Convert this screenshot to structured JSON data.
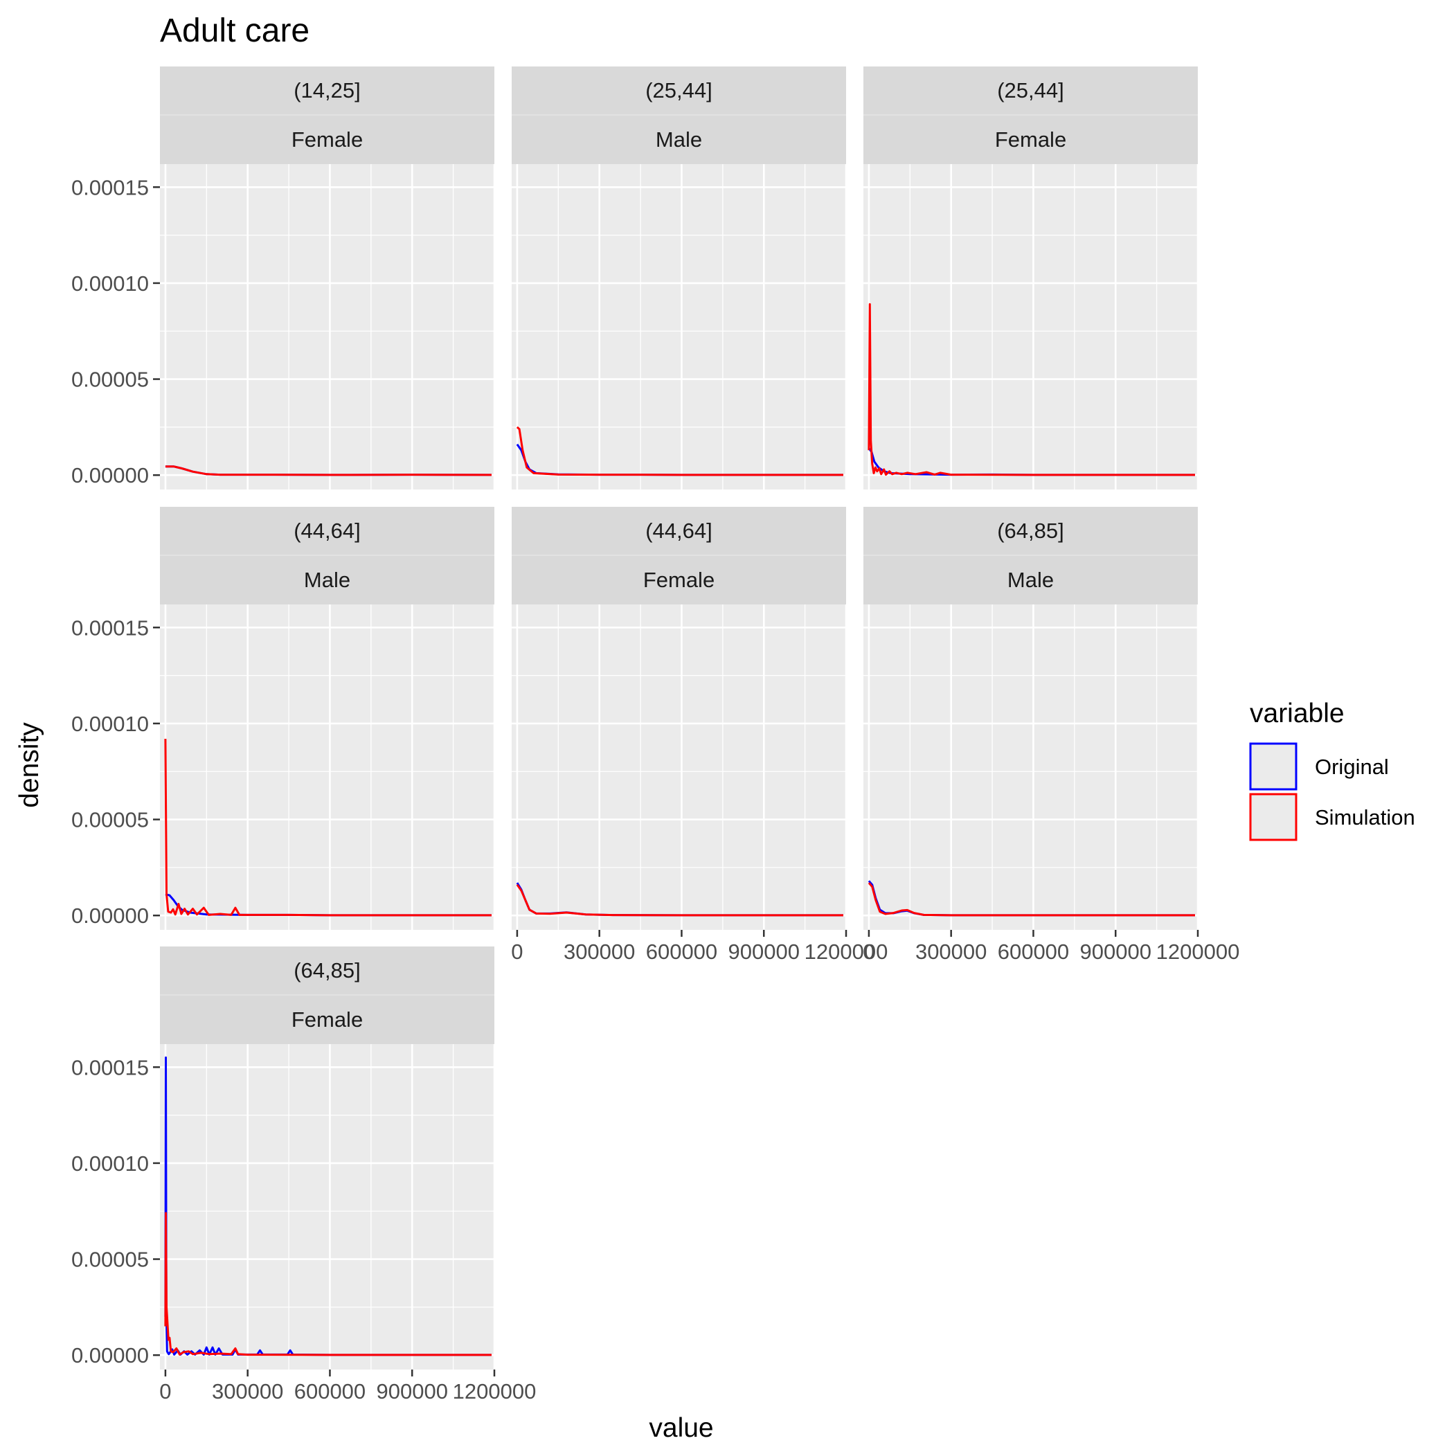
{
  "chart_data": {
    "type": "line",
    "title": "Adult care",
    "xlabel": "value",
    "ylabel": "density",
    "xlim": [
      -20000,
      1200000
    ],
    "ylim": [
      -7.5e-06,
      0.000162
    ],
    "x_ticks": [
      0,
      300000,
      600000,
      900000,
      1200000
    ],
    "x_tick_labels": [
      "0",
      "300000",
      "600000",
      "900000",
      "1200000"
    ],
    "y_ticks": [
      0,
      5e-05,
      0.0001,
      0.00015
    ],
    "y_tick_labels": [
      "0.00000",
      "0.00005",
      "0.00010",
      "0.00015"
    ],
    "grid": true,
    "legend": {
      "title": "variable",
      "position": "right",
      "entries": [
        {
          "label": "Original",
          "color": "#0000FF"
        },
        {
          "label": "Simulation",
          "color": "#FF0000"
        }
      ]
    },
    "panels": [
      {
        "age": "(14,25]",
        "sex": "Female",
        "series": [
          {
            "name": "Original",
            "color": "#0000FF",
            "points": [
              [
                0,
                4.5e-06
              ],
              [
                30000,
                4.5e-06
              ],
              [
                60000,
                3.5e-06
              ],
              [
                100000,
                1.8e-06
              ],
              [
                150000,
                5e-07
              ],
              [
                200000,
                2e-07
              ],
              [
                400000,
                2e-07
              ],
              [
                600000,
                1e-07
              ],
              [
                900000,
                2e-07
              ],
              [
                1190000,
                1e-07
              ]
            ]
          },
          {
            "name": "Simulation",
            "color": "#FF0000",
            "points": [
              [
                0,
                4.5e-06
              ],
              [
                30000,
                4.5e-06
              ],
              [
                60000,
                3.5e-06
              ],
              [
                100000,
                1.8e-06
              ],
              [
                150000,
                5e-07
              ],
              [
                200000,
                2e-07
              ],
              [
                400000,
                2e-07
              ],
              [
                600000,
                1e-07
              ],
              [
                900000,
                2e-07
              ],
              [
                1190000,
                1e-07
              ]
            ]
          }
        ]
      },
      {
        "age": "(25,44]",
        "sex": "Male",
        "series": [
          {
            "name": "Original",
            "color": "#0000FF",
            "points": [
              [
                0,
                1.6e-05
              ],
              [
                15000,
                1.3e-05
              ],
              [
                30000,
                7e-06
              ],
              [
                45000,
                3e-06
              ],
              [
                70000,
                1e-06
              ],
              [
                150000,
                4e-07
              ],
              [
                300000,
                2e-07
              ],
              [
                450000,
                2e-07
              ],
              [
                600000,
                1e-07
              ],
              [
                1190000,
                1e-07
              ]
            ]
          },
          {
            "name": "Simulation",
            "color": "#FF0000",
            "points": [
              [
                0,
                2.5e-05
              ],
              [
                8000,
                2.4e-05
              ],
              [
                20000,
                1.3e-05
              ],
              [
                35000,
                4e-06
              ],
              [
                60000,
                1e-06
              ],
              [
                150000,
                3e-07
              ],
              [
                300000,
                2e-07
              ],
              [
                450000,
                2e-07
              ],
              [
                600000,
                1e-07
              ],
              [
                1190000,
                1e-07
              ]
            ]
          }
        ]
      },
      {
        "age": "(25,44]",
        "sex": "Female",
        "series": [
          {
            "name": "Original",
            "color": "#0000FF",
            "points": [
              [
                0,
                1.4e-05
              ],
              [
                10000,
                1.2e-05
              ],
              [
                20000,
                7e-06
              ],
              [
                35000,
                4e-06
              ],
              [
                55000,
                2e-06
              ],
              [
                80000,
                1e-06
              ],
              [
                150000,
                5e-07
              ],
              [
                300000,
                2e-07
              ],
              [
                450000,
                3e-07
              ],
              [
                600000,
                1e-07
              ],
              [
                1190000,
                1e-07
              ]
            ]
          },
          {
            "name": "Simulation",
            "color": "#FF0000",
            "points": [
              [
                0,
                1.3e-05
              ],
              [
                3500,
                8.9e-05
              ],
              [
                7000,
                1.8e-05
              ],
              [
                12000,
                6e-06
              ],
              [
                18000,
                1e-06
              ],
              [
                24000,
                4e-06
              ],
              [
                30000,
                2e-06
              ],
              [
                38000,
                3.5e-06
              ],
              [
                45000,
                5e-07
              ],
              [
                55000,
                3e-06
              ],
              [
                62000,
                2e-07
              ],
              [
                75000,
                2e-06
              ],
              [
                85000,
                5e-07
              ],
              [
                100000,
                1.2e-06
              ],
              [
                120000,
                5e-07
              ],
              [
                140000,
                1.2e-06
              ],
              [
                170000,
                5e-07
              ],
              [
                210000,
                1.5e-06
              ],
              [
                240000,
                3e-07
              ],
              [
                260000,
                1.2e-06
              ],
              [
                300000,
                2e-07
              ],
              [
                600000,
                1e-07
              ],
              [
                1190000,
                1e-07
              ]
            ]
          }
        ]
      },
      {
        "age": "(44,64]",
        "sex": "Male",
        "series": [
          {
            "name": "Original",
            "color": "#0000FF",
            "points": [
              [
                0,
                1.1e-05
              ],
              [
                15000,
                1.05e-05
              ],
              [
                30000,
                8e-06
              ],
              [
                45000,
                5e-06
              ],
              [
                60000,
                3e-06
              ],
              [
                90000,
                1.5e-06
              ],
              [
                150000,
                5e-07
              ],
              [
                300000,
                3e-07
              ],
              [
                450000,
                3e-07
              ],
              [
                600000,
                1e-07
              ],
              [
                1190000,
                1e-07
              ]
            ]
          },
          {
            "name": "Simulation",
            "color": "#FF0000",
            "points": [
              [
                0,
                9.2e-05
              ],
              [
                4000,
                1.1e-05
              ],
              [
                10000,
                2e-06
              ],
              [
                20000,
                1.5e-06
              ],
              [
                28000,
                3.2e-06
              ],
              [
                36000,
                5e-07
              ],
              [
                48000,
                6e-06
              ],
              [
                58000,
                8e-07
              ],
              [
                70000,
                3.5e-06
              ],
              [
                82000,
                5e-07
              ],
              [
                100000,
                3.5e-06
              ],
              [
                115000,
                5e-07
              ],
              [
                140000,
                4e-06
              ],
              [
                158000,
                3e-07
              ],
              [
                200000,
                8e-07
              ],
              [
                240000,
                3e-07
              ],
              [
                255000,
                4e-06
              ],
              [
                270000,
                3e-07
              ],
              [
                300000,
                3e-07
              ],
              [
                450000,
                3e-07
              ],
              [
                600000,
                1e-07
              ],
              [
                1190000,
                1e-07
              ]
            ]
          }
        ]
      },
      {
        "age": "(44,64]",
        "sex": "Female",
        "series": [
          {
            "name": "Original",
            "color": "#0000FF",
            "points": [
              [
                0,
                1.7e-05
              ],
              [
                15000,
                1.35e-05
              ],
              [
                30000,
                8e-06
              ],
              [
                45000,
                3e-06
              ],
              [
                70000,
                1e-06
              ],
              [
                120000,
                1e-06
              ],
              [
                180000,
                1.6e-06
              ],
              [
                250000,
                5e-07
              ],
              [
                350000,
                2e-07
              ],
              [
                600000,
                1e-07
              ],
              [
                1190000,
                1e-07
              ]
            ]
          },
          {
            "name": "Simulation",
            "color": "#FF0000",
            "points": [
              [
                0,
                1.6e-05
              ],
              [
                15000,
                1.3e-05
              ],
              [
                30000,
                8e-06
              ],
              [
                45000,
                3e-06
              ],
              [
                70000,
                1e-06
              ],
              [
                120000,
                9e-07
              ],
              [
                180000,
                1.5e-06
              ],
              [
                250000,
                5e-07
              ],
              [
                350000,
                2e-07
              ],
              [
                600000,
                1e-07
              ],
              [
                1190000,
                1e-07
              ]
            ]
          }
        ]
      },
      {
        "age": "(64,85]",
        "sex": "Male",
        "series": [
          {
            "name": "Original",
            "color": "#0000FF",
            "points": [
              [
                0,
                1.8e-05
              ],
              [
                12000,
                1.6e-05
              ],
              [
                25000,
                9e-06
              ],
              [
                40000,
                3e-06
              ],
              [
                60000,
                1.2e-06
              ],
              [
                90000,
                1.2e-06
              ],
              [
                120000,
                2.2e-06
              ],
              [
                140000,
                2.5e-06
              ],
              [
                165000,
                1.2e-06
              ],
              [
                200000,
                3e-07
              ],
              [
                300000,
                1e-07
              ],
              [
                1190000,
                1e-07
              ]
            ]
          },
          {
            "name": "Simulation",
            "color": "#FF0000",
            "points": [
              [
                0,
                1.7e-05
              ],
              [
                12000,
                1.5e-05
              ],
              [
                25000,
                8e-06
              ],
              [
                40000,
                2e-06
              ],
              [
                60000,
                8e-07
              ],
              [
                90000,
                1.3e-06
              ],
              [
                120000,
                2.6e-06
              ],
              [
                140000,
                2.8e-06
              ],
              [
                165000,
                1.3e-06
              ],
              [
                200000,
                3e-07
              ],
              [
                300000,
                1e-07
              ],
              [
                1190000,
                1e-07
              ]
            ]
          }
        ]
      },
      {
        "age": "(64,85]",
        "sex": "Female",
        "series": [
          {
            "name": "Original",
            "color": "#0000FF",
            "points": [
              [
                0,
                2e-05
              ],
              [
                1500,
                0.000155
              ],
              [
                3500,
                2e-05
              ],
              [
                6000,
                2e-06
              ],
              [
                12000,
                5e-07
              ],
              [
                25000,
                3e-06
              ],
              [
                32000,
                3e-07
              ],
              [
                45000,
                2.5e-06
              ],
              [
                55000,
                3e-07
              ],
              [
                68000,
                2e-06
              ],
              [
                80000,
                3e-07
              ],
              [
                95000,
                2e-06
              ],
              [
                108000,
                3e-07
              ],
              [
                125000,
                2.5e-06
              ],
              [
                140000,
                3e-07
              ],
              [
                150000,
                4e-06
              ],
              [
                160000,
                3e-07
              ],
              [
                172000,
                4e-06
              ],
              [
                182000,
                3e-07
              ],
              [
                195000,
                3.5e-06
              ],
              [
                208000,
                3e-07
              ],
              [
                245000,
                3e-07
              ],
              [
                255000,
                3e-06
              ],
              [
                265000,
                3e-07
              ],
              [
                335000,
                3e-07
              ],
              [
                345000,
                2.5e-06
              ],
              [
                355000,
                3e-07
              ],
              [
                445000,
                3e-07
              ],
              [
                455000,
                2.5e-06
              ],
              [
                465000,
                3e-07
              ],
              [
                600000,
                1e-07
              ],
              [
                1190000,
                1e-07
              ]
            ]
          },
          {
            "name": "Simulation",
            "color": "#FF0000",
            "points": [
              [
                0,
                1.5e-05
              ],
              [
                1500,
                7.4e-05
              ],
              [
                4000,
                2.5e-05
              ],
              [
                7000,
                1.8e-05
              ],
              [
                11000,
                8e-06
              ],
              [
                15000,
                9e-06
              ],
              [
                20000,
                2e-06
              ],
              [
                28000,
                1.5e-06
              ],
              [
                40000,
                3.5e-06
              ],
              [
                52000,
                3e-07
              ],
              [
                65000,
                1.5e-06
              ],
              [
                85000,
                2e-06
              ],
              [
                100000,
                5e-07
              ],
              [
                130000,
                1.2e-06
              ],
              [
                160000,
                5e-07
              ],
              [
                200000,
                8e-07
              ],
              [
                240000,
                5e-07
              ],
              [
                255000,
                3.5e-06
              ],
              [
                265000,
                5e-07
              ],
              [
                300000,
                2e-07
              ],
              [
                600000,
                1e-07
              ],
              [
                1190000,
                1e-07
              ]
            ]
          }
        ]
      }
    ]
  }
}
